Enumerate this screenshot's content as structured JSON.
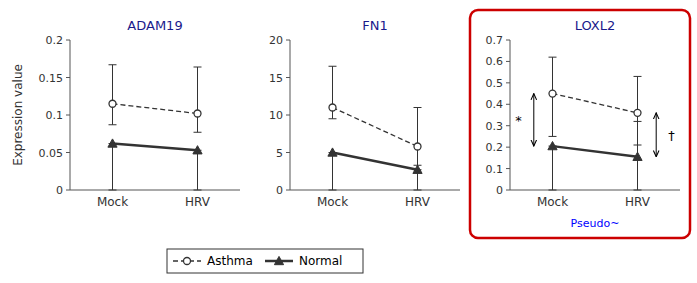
{
  "chart_data": [
    {
      "type": "line",
      "title": "ADAM19",
      "ylabel": "Expression value",
      "categories": [
        "Mock",
        "HRV"
      ],
      "ylim": [
        0,
        0.2
      ],
      "yticks": [
        0,
        0.05,
        0.1,
        0.15,
        0.2
      ],
      "grid": false,
      "legend": "bottom",
      "series": [
        {
          "name": "Asthma",
          "color": "#333333",
          "marker": "circle",
          "line_style": "dashed",
          "values": [
            0.115,
            0.102
          ],
          "error_low": [
            0.028,
            0.025
          ],
          "error_high": [
            0.052,
            0.062
          ]
        },
        {
          "name": "Normal",
          "color": "#333333",
          "marker": "triangle",
          "line_style": "solid",
          "values": [
            0.062,
            0.053
          ],
          "error_low": [
            0.062,
            0.053
          ],
          "error_high": [
            0.0,
            0.0
          ]
        }
      ]
    },
    {
      "type": "line",
      "title": "FN1",
      "categories": [
        "Mock",
        "HRV"
      ],
      "ylim": [
        0,
        20
      ],
      "yticks": [
        0,
        5,
        10,
        15,
        20
      ],
      "grid": false,
      "series": [
        {
          "color": "#333333",
          "marker": "circle",
          "line_style": "dashed",
          "values": [
            11.0,
            5.8
          ],
          "error_low": [
            1.5,
            2.5
          ],
          "error_high": [
            5.5,
            5.2
          ]
        },
        {
          "color": "#333333",
          "marker": "triangle",
          "line_style": "solid",
          "values": [
            5.0,
            2.7
          ],
          "error_low": [
            5.0,
            2.7
          ],
          "error_high": [
            0.0,
            0.0
          ]
        }
      ]
    },
    {
      "type": "line",
      "title": "LOXL2",
      "color": "#cc0000",
      "categories": [
        "Mock",
        "HRV"
      ],
      "ylim": [
        0,
        0.7
      ],
      "yticks": [
        0,
        0.1,
        0.2,
        0.3,
        0.4,
        0.5,
        0.6,
        0.7
      ],
      "grid": false,
      "series": [
        {
          "color": "#333333",
          "marker": "circle",
          "line_style": "dashed",
          "values": [
            0.45,
            0.36
          ],
          "error_low": [
            0.2,
            0.15
          ],
          "error_high": [
            0.17,
            0.17
          ]
        },
        {
          "color": "#333333",
          "marker": "triangle",
          "line_style": "solid",
          "values": [
            0.205,
            0.155
          ],
          "error_low": [
            0.205,
            0.155
          ],
          "error_high": [
            0.0,
            0.165
          ]
        }
      ],
      "annotations": [
        {
          "text": "*",
          "category": "Mock"
        },
        {
          "text": "†",
          "category": "HRV"
        },
        {
          "text": "Pseudo~",
          "color": "blue"
        }
      ]
    }
  ]
}
